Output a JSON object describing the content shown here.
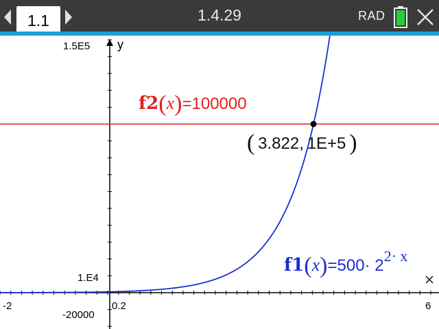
{
  "titlebar": {
    "tab_label": "1.1",
    "document_title": "1.4.29",
    "angle_mode": "RAD",
    "icons": [
      "chevron-left-icon",
      "chevron-right-icon",
      "battery-icon",
      "close-icon"
    ]
  },
  "colors": {
    "titlebar_bg": "#3a3a3a",
    "accent": "#1aa0d6",
    "f1": "#1d2fd0",
    "f2": "#e3201b",
    "point": "#000000"
  },
  "graph": {
    "window": {
      "xmin": -2,
      "xmax": 6,
      "ymin": -20000,
      "ymax": 150000
    },
    "tick_labels": {
      "ymax": "1.5E5",
      "y_scale": "1.E4",
      "ymin": "-20000",
      "xmin": "-2",
      "xmax": "6",
      "x_scale": "0.2"
    },
    "axis_labels": {
      "x": "x",
      "y": "y"
    },
    "f2": {
      "name": "f2",
      "var": "x",
      "rhs": "=100000",
      "value": 100000
    },
    "f1": {
      "name": "f1",
      "var": "x",
      "rhs": "=500· 2",
      "exponent": "2· x",
      "base": 2,
      "coef": 500,
      "k": 2
    },
    "intersection": {
      "x": 3.822,
      "y": 100000,
      "x_label": "3.822",
      "y_label": "1E+5"
    }
  }
}
